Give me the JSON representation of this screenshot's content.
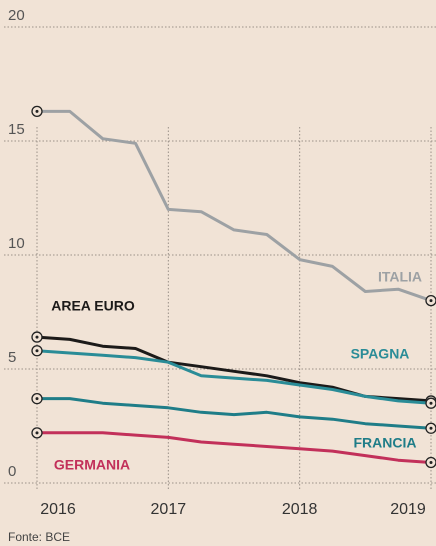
{
  "chart_data": {
    "type": "line",
    "source": "Fonte: BCE",
    "x": [
      2016,
      2016.25,
      2016.5,
      2016.75,
      2017,
      2017.25,
      2017.5,
      2017.75,
      2018,
      2018.25,
      2018.5,
      2018.75,
      2019
    ],
    "xlim": [
      2016,
      2019
    ],
    "xticks": [
      2016,
      2017,
      2018,
      2019
    ],
    "ylim": [
      0,
      20
    ],
    "yticks": [
      0,
      5,
      10,
      15,
      20
    ],
    "grid": true,
    "series": [
      {
        "name": "ITALIA",
        "color": "#9da1a4",
        "values": [
          16.3,
          16.3,
          15.1,
          14.9,
          12.0,
          11.9,
          11.1,
          10.9,
          9.8,
          9.5,
          8.4,
          8.5,
          8.0
        ]
      },
      {
        "name": "AREA EURO",
        "color": "#1c1a19",
        "values": [
          6.4,
          6.3,
          6.0,
          5.9,
          5.3,
          5.1,
          4.9,
          4.7,
          4.4,
          4.2,
          3.8,
          3.7,
          3.6
        ]
      },
      {
        "name": "SPAGNA",
        "color": "#2a8c97",
        "values": [
          5.8,
          5.7,
          5.6,
          5.5,
          5.3,
          4.7,
          4.6,
          4.5,
          4.3,
          4.1,
          3.8,
          3.6,
          3.5
        ]
      },
      {
        "name": "FRANCIA",
        "color": "#1f7d88",
        "values": [
          3.7,
          3.7,
          3.5,
          3.4,
          3.3,
          3.1,
          3.0,
          3.1,
          2.9,
          2.8,
          2.6,
          2.5,
          2.4
        ]
      },
      {
        "name": "GERMANIA",
        "color": "#c2305a",
        "values": [
          2.2,
          2.2,
          2.2,
          2.1,
          2.0,
          1.8,
          1.7,
          1.6,
          1.5,
          1.4,
          1.2,
          1.0,
          0.9
        ]
      }
    ]
  }
}
